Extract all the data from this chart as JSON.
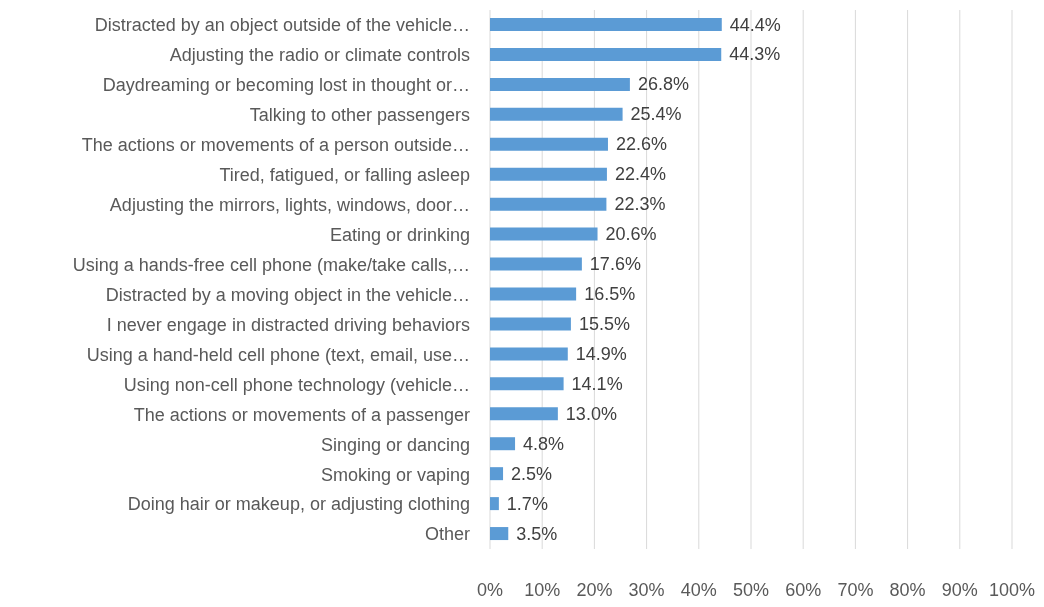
{
  "chart_data": {
    "type": "bar",
    "orientation": "horizontal",
    "categories": [
      "Distracted by an object outside of the vehicle…",
      "Adjusting the radio or climate controls",
      "Daydreaming or becoming lost in thought or…",
      "Talking to other passengers",
      "The actions or movements of a person outside…",
      "Tired, fatigued, or falling asleep",
      "Adjusting the mirrors, lights, windows, door…",
      "Eating or drinking",
      "Using a hands-free cell phone (make/take calls,…",
      "Distracted by a moving object in the vehicle…",
      "I never engage in distracted driving behaviors",
      "Using a hand-held cell phone (text, email, use…",
      "Using non-cell phone technology (vehicle…",
      "The actions or movements of a passenger",
      "Singing or dancing",
      "Smoking or vaping",
      "Doing hair or makeup, or adjusting clothing",
      "Other"
    ],
    "values": [
      44.4,
      44.3,
      26.8,
      25.4,
      22.6,
      22.4,
      22.3,
      20.6,
      17.6,
      16.5,
      15.5,
      14.9,
      14.1,
      13.0,
      4.8,
      2.5,
      1.7,
      3.5
    ],
    "value_labels": [
      "44.4%",
      "44.3%",
      "26.8%",
      "25.4%",
      "22.6%",
      "22.4%",
      "22.3%",
      "20.6%",
      "17.6%",
      "16.5%",
      "15.5%",
      "14.9%",
      "14.1%",
      "13.0%",
      "4.8%",
      "2.5%",
      "1.7%",
      "3.5%"
    ],
    "color": "#5b9bd5",
    "xlim": [
      0,
      100
    ],
    "xticks": [
      {
        "value": 0,
        "label": "0%"
      },
      {
        "value": 10,
        "label": "10%"
      },
      {
        "value": 20,
        "label": "20%"
      },
      {
        "value": 30,
        "label": "30%"
      },
      {
        "value": 40,
        "label": "40%"
      },
      {
        "value": 50,
        "label": "50%"
      },
      {
        "value": 60,
        "label": "60%"
      },
      {
        "value": 70,
        "label": "70%"
      },
      {
        "value": 80,
        "label": "80%"
      },
      {
        "value": 90,
        "label": "90%"
      },
      {
        "value": 100,
        "label": "100%"
      }
    ],
    "grid": "x"
  }
}
